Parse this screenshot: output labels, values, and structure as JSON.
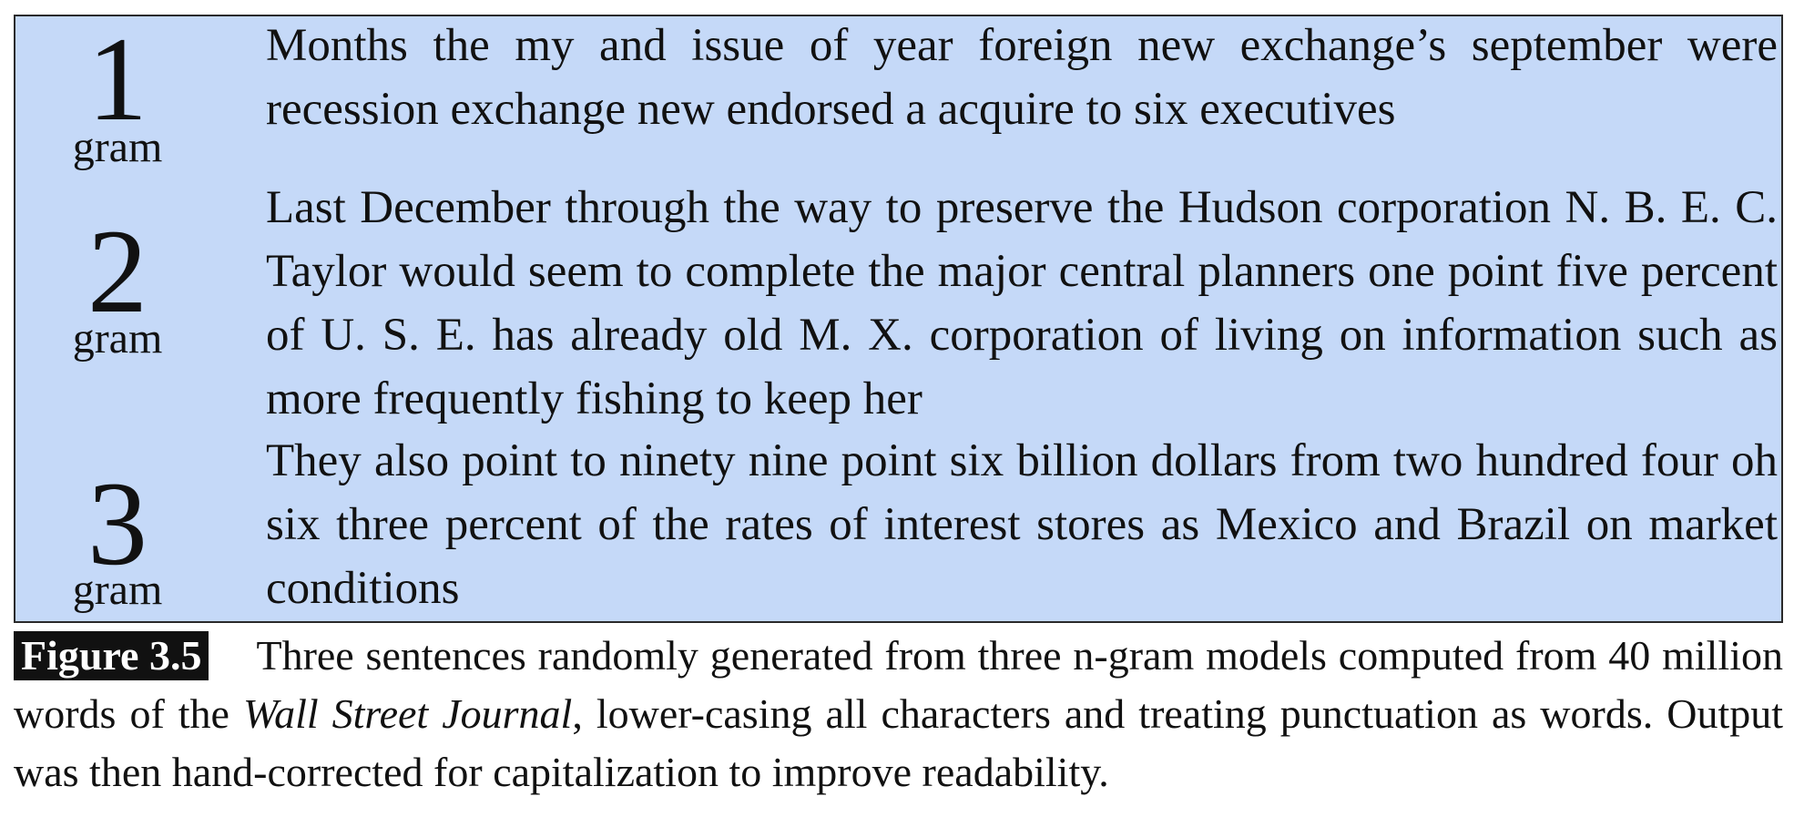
{
  "rows": [
    {
      "n": "1",
      "unit": "gram",
      "sentence": "Months the my and issue of year foreign new exchange’s september were recession exchange new endorsed a acquire to six executives"
    },
    {
      "n": "2",
      "unit": "gram",
      "sentence": "Last December through the way to preserve the Hudson corporation N. B. E. C. Taylor would seem to complete the major central planners one point five percent of U. S. E. has already old M. X. corporation of living on information such as more frequently fishing to keep her"
    },
    {
      "n": "3",
      "unit": "gram",
      "sentence": "They also point to ninety nine point six billion dollars from two hundred four oh six three percent of the rates of interest stores as Mexico and Brazil on market conditions"
    }
  ],
  "caption": {
    "label": "Figure 3.5",
    "text_before": "Three sentences randomly generated from three n-gram models computed from 40 million words of the ",
    "italic": "Wall Street Journal",
    "text_after": ", lower-casing all characters and treating punctuation as words. Output was then hand-corrected for capitalization to improve readability."
  },
  "colors": {
    "box_background": "#c5d9f8",
    "box_border": "#2a2a2a",
    "label_background": "#111111",
    "label_text": "#ffffff"
  }
}
